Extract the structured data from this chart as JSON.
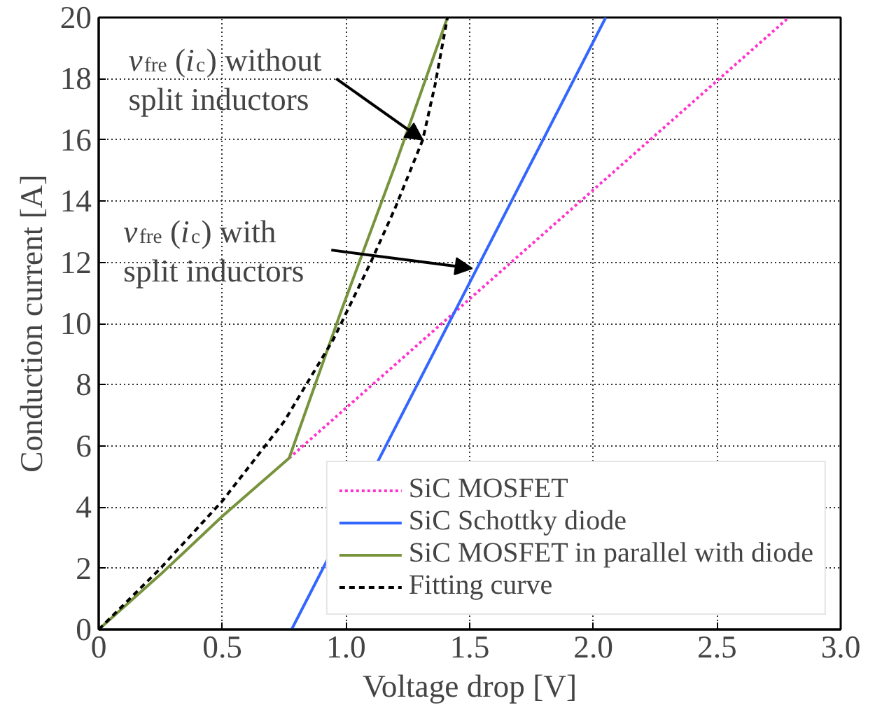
{
  "chart_data": {
    "type": "line",
    "xlabel": "Voltage drop [V]",
    "ylabel": "Conduction current [A]",
    "xlim": [
      0,
      3.0
    ],
    "ylim": [
      0,
      20
    ],
    "xticks": [
      {
        "value": 0,
        "label": "0"
      },
      0.5,
      {
        "value": 1,
        "label": "1.0"
      },
      1.5,
      {
        "value": 2,
        "label": "2.0"
      },
      2.5,
      {
        "value": 3,
        "label": "3.0"
      }
    ],
    "yticks": [
      0,
      2,
      4,
      6,
      8,
      10,
      12,
      14,
      16,
      18,
      20
    ],
    "grid": true,
    "legend": "bottom right",
    "series": [
      {
        "name": "SiC MOSFET",
        "color": "#ff33cc",
        "line_style": "dotted",
        "x": [
          0.77,
          2.79
        ],
        "values": [
          5.6,
          20
        ]
      },
      {
        "name": "SiC Schottky diode",
        "color": "#3366ff",
        "line_style": "solid",
        "x": [
          0.78,
          2.05
        ],
        "values": [
          0,
          20
        ]
      },
      {
        "name": "SiC MOSFET in parallel with diode",
        "color": "#77933c",
        "line_style": "solid",
        "x": [
          0,
          0.25,
          0.5,
          0.77,
          0.98,
          1.2,
          1.41
        ],
        "values": [
          0,
          1.8,
          3.7,
          5.6,
          10.4,
          15.2,
          20
        ]
      },
      {
        "name": "Fitting curve",
        "color": "#000000",
        "line_style": "dashed",
        "x": [
          0,
          0.25,
          0.5,
          0.75,
          0.95,
          1.1,
          1.2,
          1.31,
          1.36,
          1.41
        ],
        "values": [
          0,
          2.0,
          4.2,
          6.8,
          9.5,
          12.0,
          13.8,
          16.0,
          17.8,
          20
        ]
      }
    ],
    "annotations": [
      {
        "text": "v$_{fre}$(i$_{c}$) without split inductors",
        "x": 1.31,
        "y": 16.0
      },
      {
        "text": "v$_{fre}$(i$_{c}$) with split inductors",
        "x": 1.51,
        "y": 11.8
      }
    ]
  }
}
